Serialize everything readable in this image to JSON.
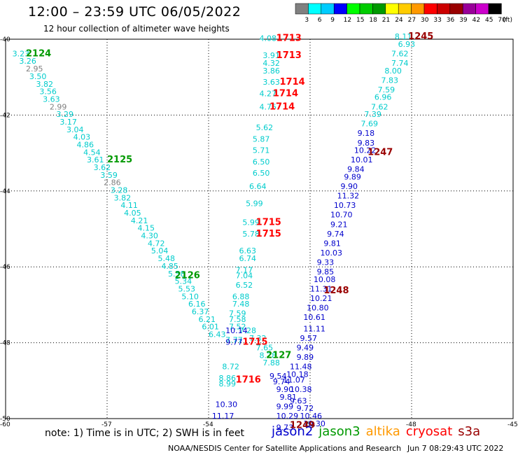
{
  "title": "12:00 – 23:59 UTC 06/05/2022",
  "subtitle": "12 hour collection of altimeter wave heights",
  "note": "note: 1) Time is in UTC; 2) SWH is in feet",
  "credit": "NOAA/NESDIS Center for Satellite Applications and Research",
  "timestamp": "Jun  7 08:29:43 UTC 2022",
  "colorbar": {
    "ticks": [
      "3",
      "6",
      "9",
      "12",
      "15",
      "18",
      "21",
      "24",
      "27",
      "30",
      "33",
      "36",
      "39",
      "42",
      "45",
      "70"
    ],
    "unit": "(ft)",
    "colors": [
      "#808080",
      "#00ffff",
      "#00ccff",
      "#0000ff",
      "#00ff00",
      "#00cc00",
      "#009900",
      "#ffff00",
      "#ffcc00",
      "#ff9900",
      "#ff0000",
      "#cc0000",
      "#990000",
      "#990099",
      "#cc00cc",
      "#000000"
    ]
  },
  "satellites": [
    {
      "name": "jason2",
      "color": "#0000cc"
    },
    {
      "name": "jason3",
      "color": "#009900"
    },
    {
      "name": "altika",
      "color": "#ff9900"
    },
    {
      "name": "cryosat",
      "color": "#ff0000"
    },
    {
      "name": "s3a",
      "color": "#990000"
    }
  ],
  "chart_data": {
    "type": "scatter",
    "title": "12:00 – 23:59 UTC 06/05/2022",
    "xlim": [
      -60,
      -45
    ],
    "ylim": [
      -50,
      -40
    ],
    "xticks": [
      "-57",
      "-54",
      "-51",
      "-48",
      "-45"
    ],
    "yticks": [
      "-40",
      "-42",
      "-44",
      "-46",
      "-48",
      "-50"
    ],
    "xtick_values": [
      -57,
      -54,
      -51,
      -48,
      -45
    ],
    "ytick_values": [
      -40,
      -42,
      -44,
      -46,
      -48,
      -50
    ],
    "corner_label": "-60",
    "grid": "dotted",
    "labels": [
      {
        "text": "3.23",
        "x": -59.8,
        "y": -40.45,
        "color": "#00cccc"
      },
      {
        "text": "3.26",
        "x": -59.6,
        "y": -40.65,
        "color": "#00cccc"
      },
      {
        "text": "2.95",
        "x": -59.4,
        "y": -40.85,
        "color": "#808080"
      },
      {
        "text": "3.50",
        "x": -59.3,
        "y": -41.05,
        "color": "#00cccc"
      },
      {
        "text": "3.82",
        "x": -59.1,
        "y": -41.25,
        "color": "#00cccc"
      },
      {
        "text": "3.56",
        "x": -59.0,
        "y": -41.45,
        "color": "#00cccc"
      },
      {
        "text": "3.63",
        "x": -58.9,
        "y": -41.65,
        "color": "#00cccc"
      },
      {
        "text": "2.99",
        "x": -58.7,
        "y": -41.85,
        "color": "#808080"
      },
      {
        "text": "3.29",
        "x": -58.5,
        "y": -42.05,
        "color": "#00cccc"
      },
      {
        "text": "3.17",
        "x": -58.4,
        "y": -42.25,
        "color": "#00cccc"
      },
      {
        "text": "3.04",
        "x": -58.2,
        "y": -42.45,
        "color": "#00cccc"
      },
      {
        "text": "4.03",
        "x": -58.0,
        "y": -42.65,
        "color": "#00cccc"
      },
      {
        "text": "4.86",
        "x": -57.9,
        "y": -42.85,
        "color": "#00cccc"
      },
      {
        "text": "4.54",
        "x": -57.7,
        "y": -43.05,
        "color": "#00cccc"
      },
      {
        "text": "3.61",
        "x": -57.6,
        "y": -43.25,
        "color": "#00cccc"
      },
      {
        "text": "3.62",
        "x": -57.4,
        "y": -43.45,
        "color": "#00cccc"
      },
      {
        "text": "3.59",
        "x": -57.2,
        "y": -43.65,
        "color": "#00cccc"
      },
      {
        "text": "2.86",
        "x": -57.1,
        "y": -43.85,
        "color": "#808080"
      },
      {
        "text": "3.28",
        "x": -56.9,
        "y": -44.05,
        "color": "#00cccc"
      },
      {
        "text": "3.82",
        "x": -56.8,
        "y": -44.25,
        "color": "#00cccc"
      },
      {
        "text": "4.11",
        "x": -56.6,
        "y": -44.45,
        "color": "#00cccc"
      },
      {
        "text": "4.05",
        "x": -56.5,
        "y": -44.65,
        "color": "#00cccc"
      },
      {
        "text": "4.21",
        "x": -56.3,
        "y": -44.85,
        "color": "#00cccc"
      },
      {
        "text": "4.15",
        "x": -56.1,
        "y": -45.05,
        "color": "#00cccc"
      },
      {
        "text": "4.30",
        "x": -56.0,
        "y": -45.25,
        "color": "#00cccc"
      },
      {
        "text": "4.72",
        "x": -55.8,
        "y": -45.45,
        "color": "#00cccc"
      },
      {
        "text": "5.04",
        "x": -55.7,
        "y": -45.65,
        "color": "#00cccc"
      },
      {
        "text": "5.48",
        "x": -55.5,
        "y": -45.85,
        "color": "#00cccc"
      },
      {
        "text": "4.85",
        "x": -55.4,
        "y": -46.05,
        "color": "#00cccc"
      },
      {
        "text": "5.58",
        "x": -55.2,
        "y": -46.25,
        "color": "#00cccc"
      },
      {
        "text": "5.34",
        "x": -55.0,
        "y": -46.45,
        "color": "#00cccc"
      },
      {
        "text": "5.53",
        "x": -54.9,
        "y": -46.65,
        "color": "#00cccc"
      },
      {
        "text": "5.10",
        "x": -54.8,
        "y": -46.85,
        "color": "#00cccc"
      },
      {
        "text": "6.16",
        "x": -54.6,
        "y": -47.05,
        "color": "#00cccc"
      },
      {
        "text": "6.37",
        "x": -54.5,
        "y": -47.25,
        "color": "#00cccc"
      },
      {
        "text": "6.21",
        "x": -54.3,
        "y": -47.45,
        "color": "#00cccc"
      },
      {
        "text": "6.01",
        "x": -54.2,
        "y": -47.65,
        "color": "#00cccc"
      },
      {
        "text": "6.43",
        "x": -54.0,
        "y": -47.85,
        "color": "#00cccc"
      },
      {
        "text": "4.08",
        "x": -52.5,
        "y": -40.05,
        "color": "#00cccc"
      },
      {
        "text": "3.91",
        "x": -52.4,
        "y": -40.5,
        "color": "#00cccc"
      },
      {
        "text": "4.32",
        "x": -52.4,
        "y": -40.7,
        "color": "#00cccc"
      },
      {
        "text": "3.86",
        "x": -52.4,
        "y": -40.9,
        "color": "#00cccc"
      },
      {
        "text": "3.63",
        "x": -52.4,
        "y": -41.2,
        "color": "#00cccc"
      },
      {
        "text": "4.27",
        "x": -52.5,
        "y": -41.5,
        "color": "#00cccc"
      },
      {
        "text": "4.75",
        "x": -52.5,
        "y": -41.85,
        "color": "#00cccc"
      },
      {
        "text": "5.62",
        "x": -52.6,
        "y": -42.4,
        "color": "#00cccc"
      },
      {
        "text": "5.87",
        "x": -52.7,
        "y": -42.7,
        "color": "#00cccc"
      },
      {
        "text": "5.71",
        "x": -52.7,
        "y": -43.0,
        "color": "#00cccc"
      },
      {
        "text": "6.50",
        "x": -52.7,
        "y": -43.3,
        "color": "#00cccc"
      },
      {
        "text": "6.50",
        "x": -52.7,
        "y": -43.6,
        "color": "#00cccc"
      },
      {
        "text": "6.64",
        "x": -52.8,
        "y": -43.95,
        "color": "#00cccc"
      },
      {
        "text": "5.99",
        "x": -52.9,
        "y": -44.4,
        "color": "#00cccc"
      },
      {
        "text": "5.99",
        "x": -53.0,
        "y": -44.9,
        "color": "#00cccc"
      },
      {
        "text": "5.78",
        "x": -53.0,
        "y": -45.2,
        "color": "#00cccc"
      },
      {
        "text": "6.63",
        "x": -53.1,
        "y": -45.65,
        "color": "#00cccc"
      },
      {
        "text": "6.74",
        "x": -53.1,
        "y": -45.85,
        "color": "#00cccc"
      },
      {
        "text": "7.17",
        "x": -53.2,
        "y": -46.15,
        "color": "#00cccc"
      },
      {
        "text": "7.04",
        "x": -53.2,
        "y": -46.3,
        "color": "#00cccc"
      },
      {
        "text": "6.52",
        "x": -53.2,
        "y": -46.55,
        "color": "#00cccc"
      },
      {
        "text": "6.88",
        "x": -53.3,
        "y": -46.85,
        "color": "#00cccc"
      },
      {
        "text": "7.48",
        "x": -53.3,
        "y": -47.05,
        "color": "#00cccc"
      },
      {
        "text": "7.59",
        "x": -53.4,
        "y": -47.3,
        "color": "#00cccc"
      },
      {
        "text": "7.58",
        "x": -53.4,
        "y": -47.45,
        "color": "#00cccc"
      },
      {
        "text": "7.52",
        "x": -53.4,
        "y": -47.65,
        "color": "#00cccc"
      },
      {
        "text": "7.28",
        "x": -53.1,
        "y": -47.75,
        "color": "#00cccc"
      },
      {
        "text": "7.32",
        "x": -52.8,
        "y": -47.95,
        "color": "#00cccc"
      },
      {
        "text": "7.77",
        "x": -53.5,
        "y": -48.0,
        "color": "#00cccc"
      },
      {
        "text": "7.65",
        "x": -52.6,
        "y": -48.2,
        "color": "#00cccc"
      },
      {
        "text": "8.28",
        "x": -52.5,
        "y": -48.4,
        "color": "#00cccc"
      },
      {
        "text": "7.88",
        "x": -52.4,
        "y": -48.6,
        "color": "#00cccc"
      },
      {
        "text": "8.72",
        "x": -53.6,
        "y": -48.7,
        "color": "#00cccc"
      },
      {
        "text": "8.86",
        "x": -53.7,
        "y": -49.0,
        "color": "#00cccc"
      },
      {
        "text": "8.99",
        "x": -53.7,
        "y": -49.15,
        "color": "#00cccc"
      },
      {
        "text": "10.14",
        "x": -53.5,
        "y": -47.75,
        "color": "#0000cc"
      },
      {
        "text": "9.77",
        "x": -53.5,
        "y": -48.05,
        "color": "#0000cc"
      },
      {
        "text": "10.30",
        "x": -53.8,
        "y": -49.7,
        "color": "#0000cc"
      },
      {
        "text": "11.17",
        "x": -53.9,
        "y": -50.0,
        "color": "#0000cc"
      },
      {
        "text": "8.11",
        "x": -48.5,
        "y": -40.0,
        "color": "#00cccc"
      },
      {
        "text": "6.93",
        "x": -48.4,
        "y": -40.2,
        "color": "#00cccc"
      },
      {
        "text": "7.62",
        "x": -48.6,
        "y": -40.45,
        "color": "#00cccc"
      },
      {
        "text": "7.74",
        "x": -48.6,
        "y": -40.7,
        "color": "#00cccc"
      },
      {
        "text": "8.00",
        "x": -48.8,
        "y": -40.9,
        "color": "#00cccc"
      },
      {
        "text": "7.83",
        "x": -48.9,
        "y": -41.15,
        "color": "#00cccc"
      },
      {
        "text": "7.59",
        "x": -49.0,
        "y": -41.4,
        "color": "#00cccc"
      },
      {
        "text": "6.96",
        "x": -49.1,
        "y": -41.6,
        "color": "#00cccc"
      },
      {
        "text": "7.62",
        "x": -49.2,
        "y": -41.85,
        "color": "#00cccc"
      },
      {
        "text": "7.39",
        "x": -49.4,
        "y": -42.05,
        "color": "#00cccc"
      },
      {
        "text": "7.69",
        "x": -49.5,
        "y": -42.3,
        "color": "#00cccc"
      },
      {
        "text": "9.18",
        "x": -49.6,
        "y": -42.55,
        "color": "#0000cc"
      },
      {
        "text": "9.83",
        "x": -49.6,
        "y": -42.8,
        "color": "#0000cc"
      },
      {
        "text": "10.22",
        "x": -49.7,
        "y": -43.0,
        "color": "#0000cc"
      },
      {
        "text": "10.01",
        "x": -49.8,
        "y": -43.25,
        "color": "#0000cc"
      },
      {
        "text": "9.84",
        "x": -49.9,
        "y": -43.5,
        "color": "#0000cc"
      },
      {
        "text": "9.89",
        "x": -50.0,
        "y": -43.7,
        "color": "#0000cc"
      },
      {
        "text": "9.90",
        "x": -50.1,
        "y": -43.95,
        "color": "#0000cc"
      },
      {
        "text": "11.32",
        "x": -50.2,
        "y": -44.2,
        "color": "#0000cc"
      },
      {
        "text": "10.73",
        "x": -50.3,
        "y": -44.45,
        "color": "#0000cc"
      },
      {
        "text": "10.70",
        "x": -50.4,
        "y": -44.7,
        "color": "#0000cc"
      },
      {
        "text": "9.21",
        "x": -50.4,
        "y": -44.95,
        "color": "#0000cc"
      },
      {
        "text": "9.74",
        "x": -50.5,
        "y": -45.2,
        "color": "#0000cc"
      },
      {
        "text": "9.81",
        "x": -50.6,
        "y": -45.45,
        "color": "#0000cc"
      },
      {
        "text": "10.03",
        "x": -50.7,
        "y": -45.7,
        "color": "#0000cc"
      },
      {
        "text": "9.33",
        "x": -50.8,
        "y": -45.95,
        "color": "#0000cc"
      },
      {
        "text": "9.85",
        "x": -50.8,
        "y": -46.2,
        "color": "#0000cc"
      },
      {
        "text": "10.08",
        "x": -50.9,
        "y": -46.4,
        "color": "#0000cc"
      },
      {
        "text": "11.31",
        "x": -51.0,
        "y": -46.65,
        "color": "#0000cc"
      },
      {
        "text": "10.21",
        "x": -51.0,
        "y": -46.9,
        "color": "#0000cc"
      },
      {
        "text": "10.80",
        "x": -51.1,
        "y": -47.15,
        "color": "#0000cc"
      },
      {
        "text": "10.61",
        "x": -51.2,
        "y": -47.4,
        "color": "#0000cc"
      },
      {
        "text": "11.11",
        "x": -51.2,
        "y": -47.7,
        "color": "#0000cc"
      },
      {
        "text": "9.57",
        "x": -51.3,
        "y": -47.95,
        "color": "#0000cc"
      },
      {
        "text": "9.49",
        "x": -51.4,
        "y": -48.2,
        "color": "#0000cc"
      },
      {
        "text": "9.89",
        "x": -51.4,
        "y": -48.45,
        "color": "#0000cc"
      },
      {
        "text": "11.48",
        "x": -51.6,
        "y": -48.7,
        "color": "#0000cc"
      },
      {
        "text": "10.18",
        "x": -51.7,
        "y": -48.9,
        "color": "#0000cc"
      },
      {
        "text": "9.54",
        "x": -52.2,
        "y": -48.95,
        "color": "#0000cc"
      },
      {
        "text": "11.07",
        "x": -51.8,
        "y": -49.05,
        "color": "#0000cc"
      },
      {
        "text": "9.74",
        "x": -52.1,
        "y": -49.1,
        "color": "#0000cc"
      },
      {
        "text": "9.90",
        "x": -52.0,
        "y": -49.3,
        "color": "#0000cc"
      },
      {
        "text": "10.38",
        "x": -51.6,
        "y": -49.3,
        "color": "#0000cc"
      },
      {
        "text": "9.81",
        "x": -51.9,
        "y": -49.5,
        "color": "#0000cc"
      },
      {
        "text": "9.63",
        "x": -51.6,
        "y": -49.6,
        "color": "#0000cc"
      },
      {
        "text": "9.99",
        "x": -52.0,
        "y": -49.75,
        "color": "#0000cc"
      },
      {
        "text": "9.72",
        "x": -51.4,
        "y": -49.8,
        "color": "#0000cc"
      },
      {
        "text": "10.29",
        "x": -52.0,
        "y": -50.0,
        "color": "#0000cc"
      },
      {
        "text": "10.46",
        "x": -51.3,
        "y": -50.0,
        "color": "#0000cc"
      },
      {
        "text": "9.73",
        "x": -52.0,
        "y": -50.3,
        "color": "#0000cc"
      },
      {
        "text": "10.30",
        "x": -51.2,
        "y": -50.2,
        "color": "#0000cc"
      }
    ],
    "times": [
      {
        "text": "2124",
        "x": -59.4,
        "y": -40.45,
        "color": "#009900"
      },
      {
        "text": "2125",
        "x": -57.0,
        "y": -43.25,
        "color": "#009900"
      },
      {
        "text": "2126",
        "x": -55.0,
        "y": -46.3,
        "color": "#009900"
      },
      {
        "text": "2127",
        "x": -52.3,
        "y": -48.4,
        "color": "#009900"
      },
      {
        "text": "1713",
        "x": -52.0,
        "y": -40.05,
        "color": "#ff0000"
      },
      {
        "text": "1713",
        "x": -52.0,
        "y": -40.5,
        "color": "#ff0000"
      },
      {
        "text": "1714",
        "x": -51.9,
        "y": -41.2,
        "color": "#ff0000"
      },
      {
        "text": "1714",
        "x": -52.1,
        "y": -41.5,
        "color": "#ff0000"
      },
      {
        "text": "1714",
        "x": -52.2,
        "y": -41.85,
        "color": "#ff0000"
      },
      {
        "text": "1715",
        "x": -52.6,
        "y": -44.9,
        "color": "#ff0000"
      },
      {
        "text": "1715",
        "x": -52.6,
        "y": -45.2,
        "color": "#ff0000"
      },
      {
        "text": "1715",
        "x": -53.0,
        "y": -48.05,
        "color": "#ff0000"
      },
      {
        "text": "1716",
        "x": -53.2,
        "y": -49.05,
        "color": "#ff0000"
      },
      {
        "text": "1245",
        "x": -48.1,
        "y": -40.0,
        "color": "#990000"
      },
      {
        "text": "1247",
        "x": -49.3,
        "y": -43.05,
        "color": "#990000"
      },
      {
        "text": "1248",
        "x": -50.6,
        "y": -46.7,
        "color": "#990000"
      },
      {
        "text": "1249",
        "x": -51.6,
        "y": -50.25,
        "color": "#990000"
      }
    ]
  }
}
